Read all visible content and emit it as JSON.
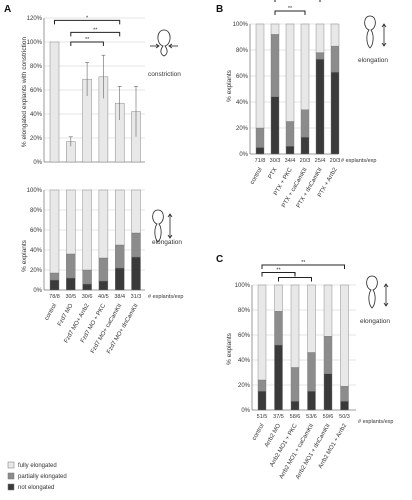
{
  "colors": {
    "fully": "#e8e8e8",
    "partially": "#8c8c8c",
    "not": "#3a3a3a",
    "grid": "#cccccc",
    "axis": "#555555"
  },
  "chart_data": [
    {
      "id": "A_top",
      "panel_label": "A",
      "type": "bar",
      "ylabel": "% elongated explants with constriction",
      "ylim": [
        0,
        120
      ],
      "yticks": [
        "0%",
        "20%",
        "40%",
        "60%",
        "80%",
        "100%",
        "120%"
      ],
      "values": [
        100,
        17,
        69,
        71,
        49,
        42
      ],
      "errors": [
        0,
        4,
        14,
        18,
        14,
        21
      ],
      "annotation": "constriction",
      "significance": [
        "*",
        "**",
        "**"
      ]
    },
    {
      "id": "A_bottom",
      "type": "bar",
      "stacked": true,
      "ylabel": "% explants",
      "ylim": [
        0,
        100
      ],
      "yticks": [
        "0%",
        "20%",
        "40%",
        "60%",
        "80%",
        "100%"
      ],
      "categories": [
        "control",
        "Fzd7 MO",
        "Fzd7 MO+ Arrb2",
        "Fzd7 MO + PKC",
        "Fzd7 MO+ caCamKII",
        "Fzd7 MO+ dnCamKII"
      ],
      "counts": [
        "78/8",
        "30/5",
        "30/6",
        "40/5",
        "38/4",
        "31/3"
      ],
      "count_label": "# explants/exp",
      "series": [
        {
          "name": "not elongated",
          "values": [
            10,
            12,
            6,
            9,
            22,
            33
          ]
        },
        {
          "name": "partially elongated",
          "values": [
            7,
            24,
            14,
            23,
            23,
            24
          ]
        },
        {
          "name": "fully elongated",
          "values": [
            83,
            64,
            80,
            68,
            55,
            43
          ]
        }
      ],
      "annotation": "elongation",
      "legend": [
        "fully elongated",
        "partially elongated",
        "not elongated"
      ]
    },
    {
      "id": "B",
      "panel_label": "B",
      "type": "bar",
      "stacked": true,
      "ylabel": "% explants",
      "ylim": [
        0,
        100
      ],
      "yticks": [
        "0%",
        "20%",
        "40%",
        "60%",
        "80%",
        "100%"
      ],
      "categories": [
        "control",
        "PTX",
        "PTX + PKC",
        "PTX + caCamKII",
        "PTX + dnCamKII",
        "PTX + Arrb2"
      ],
      "counts": [
        "71/8",
        "30/3",
        "34/4",
        "20/3",
        "25/4",
        "20/3"
      ],
      "count_label": "# explants/exp",
      "series": [
        {
          "name": "not elongated",
          "values": [
            5,
            44,
            6,
            13,
            73,
            63
          ]
        },
        {
          "name": "partially elongated",
          "values": [
            15,
            48,
            19,
            21,
            5,
            20
          ]
        },
        {
          "name": "fully elongated",
          "values": [
            80,
            8,
            75,
            66,
            22,
            17
          ]
        }
      ],
      "annotation": "elongation",
      "significance": [
        "**",
        "**"
      ]
    },
    {
      "id": "C",
      "panel_label": "C",
      "type": "bar",
      "stacked": true,
      "ylabel": "% explants",
      "ylim": [
        0,
        100
      ],
      "yticks": [
        "0%",
        "20%",
        "40%",
        "60%",
        "80%",
        "100%"
      ],
      "categories": [
        "control",
        "Arrb2 MO",
        "Arrb2 MO1 + PKC",
        "Arrb2 MO1 + caCamKII",
        "Arrb2 MO1 + dnCamKII",
        "Arrb2 MO1 + Arrb2"
      ],
      "counts": [
        "51/5",
        "37/5",
        "58/6",
        "53/6",
        "59/6",
        "50/3"
      ],
      "count_label": "# explants/exp",
      "series": [
        {
          "name": "not elongated",
          "values": [
            15,
            52,
            7,
            15,
            29,
            7
          ]
        },
        {
          "name": "partially elongated",
          "values": [
            9,
            27,
            27,
            31,
            30,
            12
          ]
        },
        {
          "name": "fully elongated",
          "values": [
            76,
            21,
            66,
            54,
            41,
            81
          ]
        }
      ],
      "annotation": "elongation",
      "significance": [
        "**",
        "*",
        "**"
      ]
    }
  ]
}
